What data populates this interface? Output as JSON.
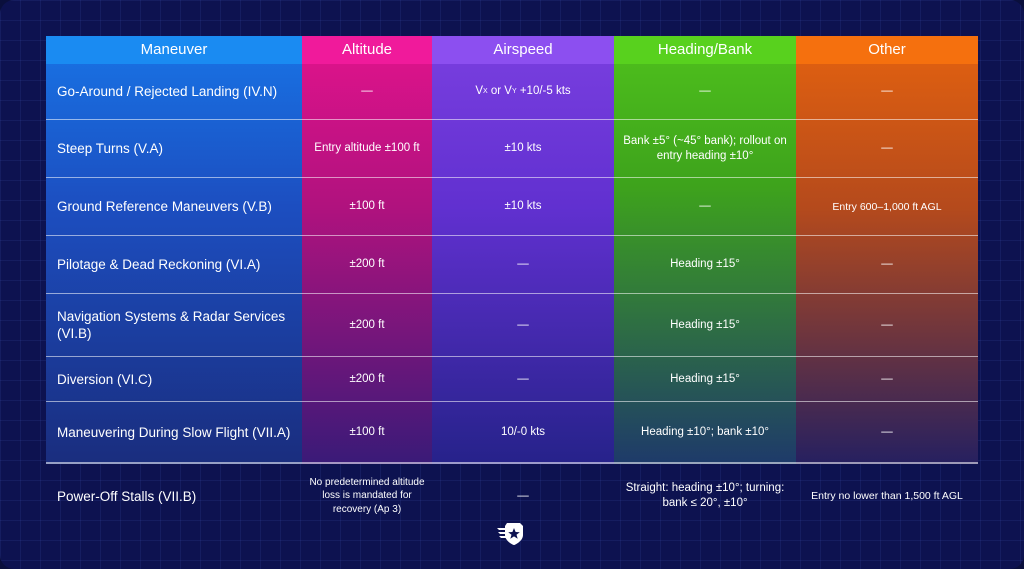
{
  "header": {
    "maneuver": "Maneuver",
    "altitude": "Altitude",
    "airspeed": "Airspeed",
    "heading_bank": "Heading/Bank",
    "other": "Other"
  },
  "rows": [
    {
      "maneuver": "Go-Around / Rejected Landing (IV.N)",
      "altitude": "—",
      "airspeed_vx": "V",
      "airspeed_sub1": "X",
      "airspeed_mid": " or V",
      "airspeed_sub2": "Y",
      "airspeed_tail": " +10/-5 kts",
      "heading": "—",
      "other": "—"
    },
    {
      "maneuver": "Steep Turns (V.A)",
      "altitude": "Entry altitude ±100 ft",
      "airspeed": "±10 kts",
      "heading": "Bank ±5° (~45° bank); rollout on entry heading ±10°",
      "other": "—"
    },
    {
      "maneuver": "Ground Reference Maneuvers (V.B)",
      "altitude": "±100 ft",
      "airspeed": "±10 kts",
      "heading": "—",
      "other": "Entry 600–1,000 ft AGL"
    },
    {
      "maneuver": "Pilotage & Dead Reckoning (VI.A)",
      "altitude": "±200 ft",
      "airspeed": "—",
      "heading": "Heading ±15°",
      "other": "—"
    },
    {
      "maneuver": "Navigation Systems & Radar Services (VI.B)",
      "altitude": "±200 ft",
      "airspeed": "—",
      "heading": "Heading ±15°",
      "other": "—"
    },
    {
      "maneuver": "Diversion (VI.C)",
      "altitude": "±200 ft",
      "airspeed": "—",
      "heading": "Heading ±15°",
      "other": "—"
    },
    {
      "maneuver": "Maneuvering During Slow Flight (VII.A)",
      "altitude": "±100 ft",
      "airspeed": "10/-0 kts",
      "heading": "Heading ±10°; bank ±10°",
      "other": "—"
    },
    {
      "maneuver": "Power-Off Stalls (VII.B)",
      "altitude": "No predetermined altitude loss is mandated for recovery (Ap 3)",
      "airspeed": "—",
      "heading": "Straight: heading ±10°; turning: bank ≤ 20°, ±10°",
      "other": "Entry no lower than 1,500 ft AGL"
    }
  ],
  "logo": {
    "icon": "shield-star-wings-icon"
  },
  "colors": {
    "maneuver": "#1a8bf2",
    "altitude": "#f01a9b",
    "airspeed": "#8c4ff0",
    "heading_bank": "#58d11e",
    "other": "#f5700e",
    "background": "#0d1250"
  }
}
